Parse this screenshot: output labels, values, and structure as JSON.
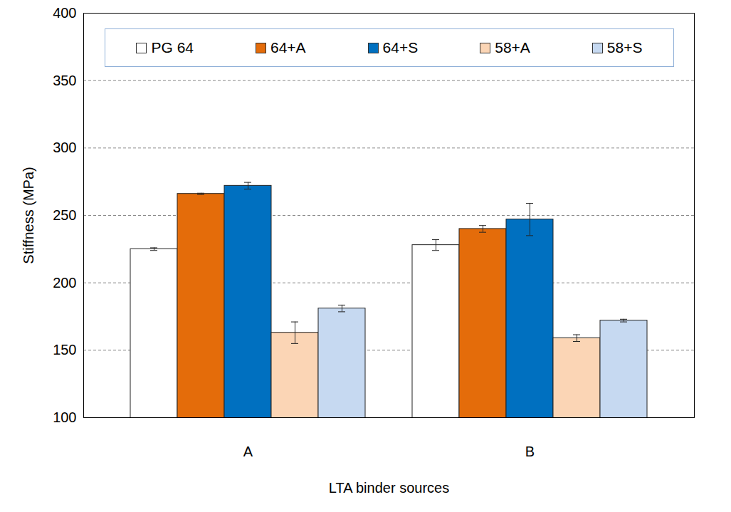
{
  "chart_data": {
    "type": "bar",
    "categories": [
      "A",
      "B"
    ],
    "series": [
      {
        "name": "PG 64",
        "color": "#ffffff",
        "values": [
          225,
          228
        ],
        "errors": [
          1,
          4
        ]
      },
      {
        "name": "64+A",
        "color": "#e46c0a",
        "values": [
          266,
          240
        ],
        "errors": [
          0.5,
          2.5
        ]
      },
      {
        "name": "64+S",
        "color": "#0070c0",
        "values": [
          272,
          247
        ],
        "errors": [
          2.5,
          12
        ]
      },
      {
        "name": "58+A",
        "color": "#fbd5b5",
        "values": [
          163,
          159
        ],
        "errors": [
          8,
          2.5
        ]
      },
      {
        "name": "58+S",
        "color": "#c6d9f1",
        "values": [
          181,
          172
        ],
        "errors": [
          2.5,
          1
        ]
      }
    ],
    "xlabel": "LTA binder sources",
    "ylabel": "Stiffness (MPa)",
    "ylim": [
      100,
      400
    ],
    "yticks": [
      100,
      150,
      200,
      250,
      300,
      350,
      400
    ],
    "grid": true,
    "legend": "top"
  }
}
